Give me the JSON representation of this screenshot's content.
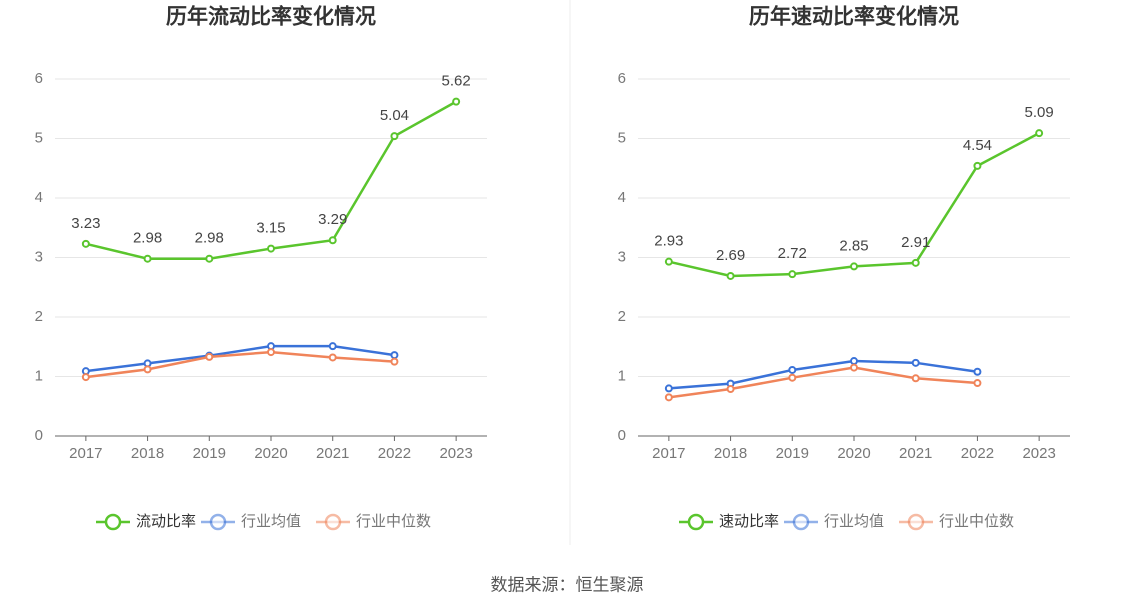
{
  "chart_data": [
    {
      "type": "line",
      "title": "历年流动比率变化情况",
      "categories": [
        "2017",
        "2018",
        "2019",
        "2020",
        "2021",
        "2022",
        "2023"
      ],
      "series": [
        {
          "name": "流动比率",
          "color": "#5ac52d",
          "show_labels": true,
          "values": [
            3.23,
            2.98,
            2.98,
            3.15,
            3.29,
            5.04,
            5.62
          ]
        },
        {
          "name": "行业均值",
          "color": "#3a72d8",
          "values": [
            1.09,
            1.22,
            1.35,
            1.51,
            1.51,
            1.36,
            null
          ]
        },
        {
          "name": "行业中位数",
          "color": "#f0845a",
          "values": [
            0.99,
            1.12,
            1.33,
            1.41,
            1.32,
            1.25,
            null
          ]
        }
      ],
      "ylim": [
        0,
        6
      ],
      "yticks": [
        0,
        1,
        2,
        3,
        4,
        5,
        6
      ],
      "grid": true,
      "legend": "bottom"
    },
    {
      "type": "line",
      "title": "历年速动比率变化情况",
      "categories": [
        "2017",
        "2018",
        "2019",
        "2020",
        "2021",
        "2022",
        "2023"
      ],
      "series": [
        {
          "name": "速动比率",
          "color": "#5ac52d",
          "show_labels": true,
          "values": [
            2.93,
            2.69,
            2.72,
            2.85,
            2.91,
            4.54,
            5.09
          ]
        },
        {
          "name": "行业均值",
          "color": "#3a72d8",
          "values": [
            0.8,
            0.88,
            1.11,
            1.26,
            1.23,
            1.08,
            null
          ]
        },
        {
          "name": "行业中位数",
          "color": "#f0845a",
          "values": [
            0.65,
            0.79,
            0.98,
            1.15,
            0.97,
            0.89,
            null
          ]
        }
      ],
      "ylim": [
        0,
        6
      ],
      "yticks": [
        0,
        1,
        2,
        3,
        4,
        5,
        6
      ],
      "grid": true,
      "legend": "bottom"
    }
  ],
  "source": "数据来源：恒生聚源"
}
